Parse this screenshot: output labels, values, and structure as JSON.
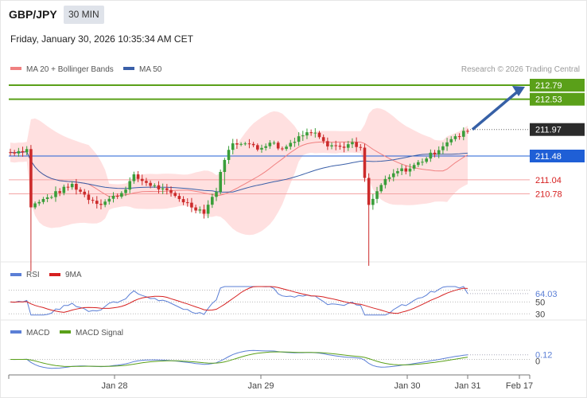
{
  "header": {
    "symbol": "GBP/JPY",
    "timeframe": "30 MIN",
    "datetime": "Friday, January 30, 2026 10:35:34 AM CET"
  },
  "legend": {
    "ma20_bb": "MA 20 + Bollinger Bands",
    "ma50": "MA 50",
    "credit": "Research © 2026 Trading Central"
  },
  "colors": {
    "up_candle": "#3a9e3a",
    "down_candle": "#cc2b2b",
    "bollinger_fill": "#ffdada",
    "ma20": "#f08080",
    "ma50": "#3a5fa8",
    "resistance_line": "#5aa019",
    "pivot_line": "#1f5fd6",
    "support_line": "#f4a4a4",
    "support_text": "#d62020",
    "arrow": "#3660a6",
    "rsi": "#5b7fd6",
    "rsi_ma": "#d62020",
    "macd": "#5b7fd6",
    "macd_signal": "#5aa019"
  },
  "chart_data": [
    {
      "type": "candlestick",
      "title": "GBP/JPY",
      "ylim": [
        209.2,
        213.2
      ],
      "x_ticks": [
        "Jan 28",
        "Jan 29",
        "Jan 30",
        "Jan 31",
        "Feb 17"
      ],
      "last_price": 211.97,
      "levels": [
        {
          "value": 212.79,
          "label": "212.79",
          "kind": "resistance"
        },
        {
          "value": 212.53,
          "label": "212.53",
          "kind": "resistance"
        },
        {
          "value": 211.48,
          "label": "211.48",
          "kind": "pivot"
        },
        {
          "value": 211.04,
          "label": "211.04",
          "kind": "support"
        },
        {
          "value": 210.78,
          "label": "210.78",
          "kind": "support"
        }
      ],
      "current_label": "211.97",
      "forecast_target": 212.79,
      "series": [
        {
          "name": "MA 20 + Bollinger Bands"
        },
        {
          "name": "MA 50"
        }
      ]
    },
    {
      "type": "line",
      "series": [
        {
          "name": "RSI",
          "last": 64.03
        },
        {
          "name": "9MA"
        }
      ],
      "ylim": [
        25,
        80
      ],
      "y_ticks": [
        30,
        50
      ],
      "value_label": "64.03"
    },
    {
      "type": "line",
      "series": [
        {
          "name": "MACD",
          "last": 0.12
        },
        {
          "name": "MACD Signal"
        }
      ],
      "ylim": [
        -0.3,
        0.55
      ],
      "y_ticks": [
        0
      ],
      "value_label": "0.12"
    }
  ]
}
